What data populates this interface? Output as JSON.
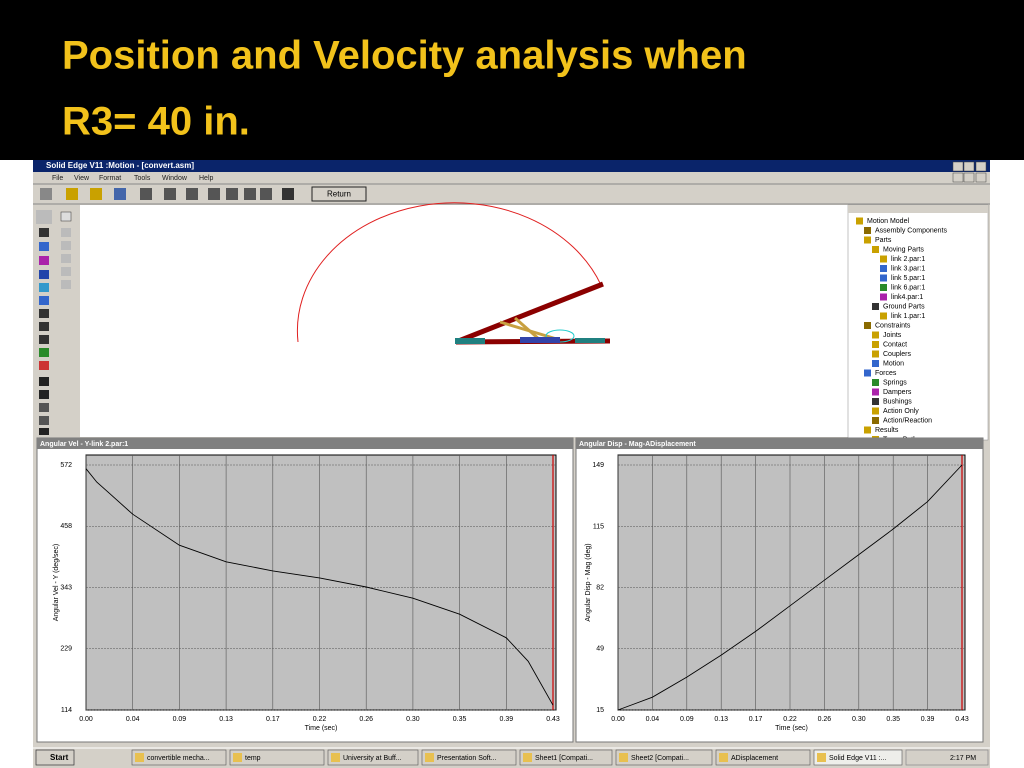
{
  "slide": {
    "title_lines": [
      "Position and Velocity analysis when",
      "R3= 40 in."
    ]
  },
  "window": {
    "title": "Solid Edge V11 :Motion - [convert.asm]",
    "menu": [
      "File",
      "View",
      "Format",
      "Tools",
      "Window",
      "Help"
    ],
    "return_button": "Return",
    "tree": [
      {
        "label": "Motion Model",
        "depth": 0
      },
      {
        "label": "Assembly Components",
        "depth": 1
      },
      {
        "label": "Parts",
        "depth": 1
      },
      {
        "label": "Moving Parts",
        "depth": 2
      },
      {
        "label": "link 2.par:1",
        "depth": 3
      },
      {
        "label": "link 3.par:1",
        "depth": 3
      },
      {
        "label": "link 5.par:1",
        "depth": 3
      },
      {
        "label": "link 6.par:1",
        "depth": 3
      },
      {
        "label": "link4.par:1",
        "depth": 3
      },
      {
        "label": "Ground Parts",
        "depth": 2
      },
      {
        "label": "link 1.par:1",
        "depth": 3
      },
      {
        "label": "Constraints",
        "depth": 1
      },
      {
        "label": "Joints",
        "depth": 2
      },
      {
        "label": "Contact",
        "depth": 2
      },
      {
        "label": "Couplers",
        "depth": 2
      },
      {
        "label": "Motion",
        "depth": 2
      },
      {
        "label": "Forces",
        "depth": 1
      },
      {
        "label": "Springs",
        "depth": 2
      },
      {
        "label": "Dampers",
        "depth": 2
      },
      {
        "label": "Bushings",
        "depth": 2
      },
      {
        "label": "Action Only",
        "depth": 2
      },
      {
        "label": "Action/Reaction",
        "depth": 2
      },
      {
        "label": "Results",
        "depth": 1
      },
      {
        "label": "Trace Path",
        "depth": 2
      }
    ]
  },
  "taskbar": {
    "start": "Start",
    "items": [
      "convertible mecha...",
      "temp",
      "University at Buff...",
      "Presentation Soft...",
      "Sheet1 [Compati...",
      "Sheet2 [Compati...",
      "ADisplacement",
      "Solid Edge V11 :..."
    ],
    "clock": "2:17 PM"
  },
  "chart_data": [
    {
      "type": "line",
      "title": "Angular Vel - Y-link 2.par:1",
      "x_label": "Time (sec)",
      "y_label": "Angular Vel - Y (deg/sec)",
      "xlim": [
        0,
        0.433
      ],
      "ylim": [
        114,
        572
      ],
      "xticks": [
        {
          "value": 0,
          "label": "0.00"
        },
        {
          "value": 0.0433,
          "label": "0.04"
        },
        {
          "value": 0.0866,
          "label": "0.09"
        },
        {
          "value": 0.1299,
          "label": "0.13"
        },
        {
          "value": 0.1732,
          "label": "0.17"
        },
        {
          "value": 0.2165,
          "label": "0.22"
        },
        {
          "value": 0.2598,
          "label": "0.26"
        },
        {
          "value": 0.3031,
          "label": "0.30"
        },
        {
          "value": 0.3464,
          "label": "0.35"
        },
        {
          "value": 0.3897,
          "label": "0.39"
        },
        {
          "value": 0.433,
          "label": "0.43"
        }
      ],
      "yticks": [
        114,
        {
          "value": 228.5,
          "label": "229"
        },
        343,
        {
          "value": 457.5,
          "label": "458"
        },
        572
      ],
      "x": [
        0,
        0.01,
        0.02,
        0.0433,
        0.0866,
        0.1299,
        0.1732,
        0.2165,
        0.2598,
        0.3031,
        0.3464,
        0.3897,
        0.41,
        0.433
      ],
      "values": [
        565,
        540,
        522,
        480,
        422,
        391,
        374,
        361,
        344,
        323,
        293,
        249,
        205,
        123
      ],
      "color": "#000000",
      "grid": true
    },
    {
      "type": "line",
      "title": "Angular Disp - Mag-ADisplacement",
      "x_label": "Time (sec)",
      "y_label": "Angular Disp - Mag (deg)",
      "xlim": [
        0,
        0.433
      ],
      "ylim": [
        15,
        149
      ],
      "xticks": [
        {
          "value": 0,
          "label": "0.00"
        },
        {
          "value": 0.0433,
          "label": "0.04"
        },
        {
          "value": 0.0866,
          "label": "0.09"
        },
        {
          "value": 0.1299,
          "label": "0.13"
        },
        {
          "value": 0.1732,
          "label": "0.17"
        },
        {
          "value": 0.2165,
          "label": "0.22"
        },
        {
          "value": 0.2598,
          "label": "0.26"
        },
        {
          "value": 0.3031,
          "label": "0.30"
        },
        {
          "value": 0.3464,
          "label": "0.35"
        },
        {
          "value": 0.3897,
          "label": "0.39"
        },
        {
          "value": 0.433,
          "label": "0.43"
        }
      ],
      "yticks": [
        15,
        {
          "value": 48.5,
          "label": "49"
        },
        82,
        {
          "value": 115.3,
          "label": "115"
        },
        149
      ],
      "x": [
        0,
        0.0433,
        0.0866,
        0.1299,
        0.1732,
        0.2165,
        0.2598,
        0.3031,
        0.3464,
        0.3897,
        0.433
      ],
      "values": [
        15,
        22,
        33,
        45,
        58,
        72,
        86,
        100,
        114,
        129,
        149
      ],
      "color": "#000000",
      "grid": true
    }
  ]
}
